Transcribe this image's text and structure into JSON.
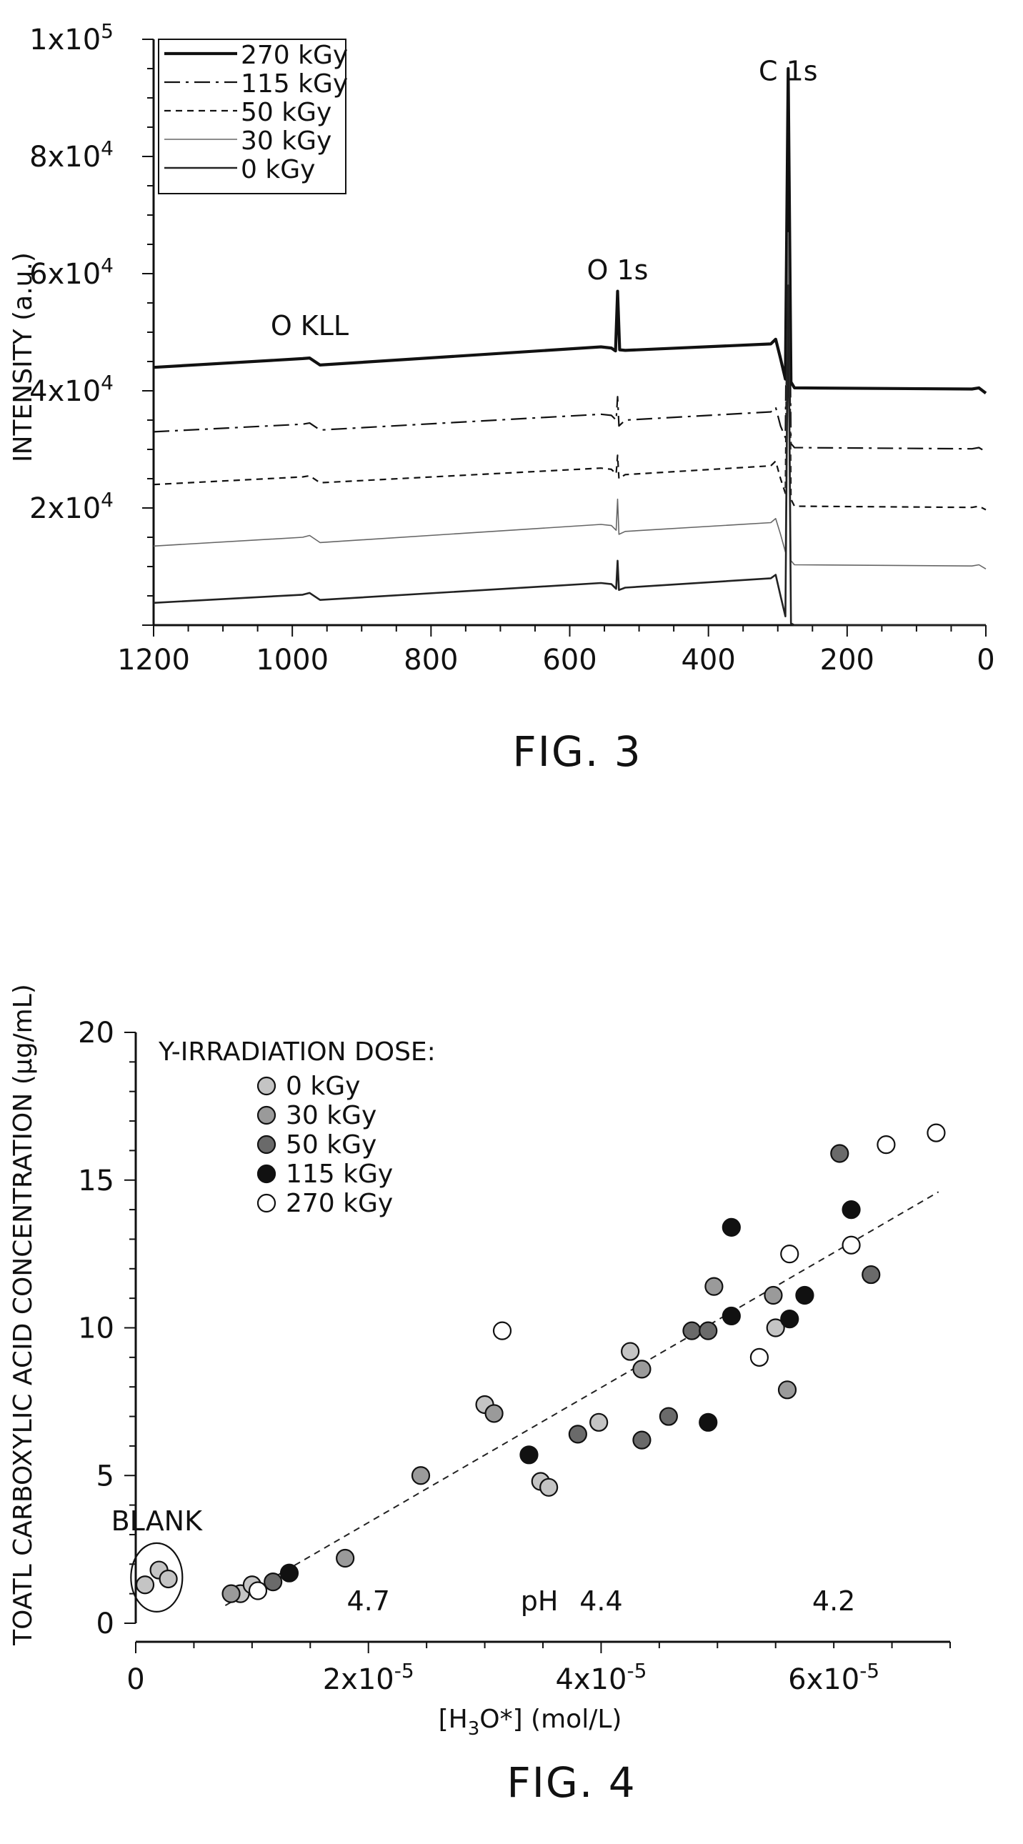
{
  "chart_data": [
    {
      "type": "line",
      "figure_label": "FIG. 3",
      "title": "",
      "ylabel": "INTENSITY (a.u.)",
      "xlabel": "",
      "xlim": [
        1200,
        0
      ],
      "ylim": [
        0,
        100000
      ],
      "x_ticks": [
        1200,
        1000,
        800,
        600,
        400,
        200,
        0
      ],
      "x_tick_labels": [
        "1200",
        "1000",
        "800",
        "600",
        "400",
        "200",
        "0"
      ],
      "y_ticks": [
        {
          "value": 20000,
          "mantissa": "2x10",
          "exp": "4"
        },
        {
          "value": 40000,
          "mantissa": "4x10",
          "exp": "4"
        },
        {
          "value": 60000,
          "mantissa": "6x10",
          "exp": "4"
        },
        {
          "value": 80000,
          "mantissa": "8x10",
          "exp": "4"
        },
        {
          "value": 100000,
          "mantissa": "1x10",
          "exp": "5"
        }
      ],
      "legend_position": "top-left",
      "annotations": [
        {
          "text": "O KLL",
          "x": 975,
          "y": 49500
        },
        {
          "text": "O 1s",
          "x": 531,
          "y": 59000
        },
        {
          "text": "C 1s",
          "x": 285,
          "y": 93000
        }
      ],
      "series": [
        {
          "name": "270 kGy",
          "style": "thick",
          "points": [
            [
              1200,
              44000
            ],
            [
              985,
              45500
            ],
            [
              975,
              45600
            ],
            [
              960,
              44400
            ],
            [
              555,
              47500
            ],
            [
              540,
              47300
            ],
            [
              534,
              46800
            ],
            [
              531,
              57000
            ],
            [
              528,
              47000
            ],
            [
              520,
              46900
            ],
            [
              310,
              48000
            ],
            [
              303,
              48800
            ],
            [
              296,
              45500
            ],
            [
              289,
              42000
            ],
            [
              285,
              95000
            ],
            [
              281,
              41500
            ],
            [
              276,
              40500
            ],
            [
              20,
              40300
            ],
            [
              10,
              40500
            ],
            [
              0,
              39600
            ]
          ]
        },
        {
          "name": "115 kGy",
          "style": "dashdot",
          "points": [
            [
              1200,
              33000
            ],
            [
              985,
              34300
            ],
            [
              975,
              34500
            ],
            [
              960,
              33300
            ],
            [
              555,
              36000
            ],
            [
              540,
              35800
            ],
            [
              533,
              35000
            ],
            [
              531,
              39000
            ],
            [
              529,
              34000
            ],
            [
              520,
              35000
            ],
            [
              310,
              36400
            ],
            [
              303,
              37200
            ],
            [
              296,
              34000
            ],
            [
              289,
              32000
            ],
            [
              285,
              86000
            ],
            [
              281,
              31000
            ],
            [
              276,
              30300
            ],
            [
              20,
              30100
            ],
            [
              10,
              30300
            ],
            [
              0,
              29600
            ]
          ]
        },
        {
          "name": "50 kGy",
          "style": "dashed",
          "points": [
            [
              1200,
              24000
            ],
            [
              985,
              25300
            ],
            [
              975,
              25500
            ],
            [
              960,
              24300
            ],
            [
              555,
              26800
            ],
            [
              540,
              26600
            ],
            [
              533,
              25800
            ],
            [
              531,
              29000
            ],
            [
              529,
              25000
            ],
            [
              520,
              25700
            ],
            [
              310,
              27200
            ],
            [
              303,
              28000
            ],
            [
              296,
              25000
            ],
            [
              289,
              22500
            ],
            [
              285,
              77000
            ],
            [
              281,
              21500
            ],
            [
              276,
              20300
            ],
            [
              20,
              20100
            ],
            [
              10,
              20300
            ],
            [
              0,
              19700
            ]
          ]
        },
        {
          "name": "30 kGy",
          "style": "thin",
          "points": [
            [
              1200,
              13500
            ],
            [
              985,
              15000
            ],
            [
              975,
              15300
            ],
            [
              960,
              14100
            ],
            [
              555,
              17200
            ],
            [
              540,
              17000
            ],
            [
              533,
              16200
            ],
            [
              531,
              21500
            ],
            [
              529,
              15500
            ],
            [
              520,
              16000
            ],
            [
              310,
              17500
            ],
            [
              303,
              18200
            ],
            [
              296,
              15500
            ],
            [
              289,
              12500
            ],
            [
              285,
              67000
            ],
            [
              281,
              11000
            ],
            [
              276,
              10300
            ],
            [
              20,
              10100
            ],
            [
              10,
              10300
            ],
            [
              0,
              9600
            ]
          ]
        },
        {
          "name": "0 kGy",
          "style": "medium",
          "points": [
            [
              1200,
              3800
            ],
            [
              985,
              5200
            ],
            [
              975,
              5500
            ],
            [
              960,
              4300
            ],
            [
              555,
              7200
            ],
            [
              540,
              7000
            ],
            [
              533,
              6200
            ],
            [
              531,
              11000
            ],
            [
              529,
              6000
            ],
            [
              520,
              6400
            ],
            [
              310,
              8000
            ],
            [
              303,
              8600
            ],
            [
              296,
              5000
            ],
            [
              289,
              1500
            ],
            [
              285,
              58000
            ],
            [
              281,
              300
            ],
            [
              276,
              0
            ],
            [
              0,
              0
            ]
          ]
        }
      ]
    },
    {
      "type": "scatter",
      "figure_label": "FIG. 4",
      "title": "",
      "xlabel": "[H3O*] (mol/L)",
      "ylabel": "TOATL CARBOXYLIC ACID CONCENTRATION (µg/mL)",
      "xlim": [
        0,
        7e-05
      ],
      "ylim": [
        0,
        20
      ],
      "x_ticks": [
        {
          "value": 0,
          "mantissa": "0",
          "exp": ""
        },
        {
          "value": 2e-05,
          "mantissa": "2x10",
          "exp": "-5"
        },
        {
          "value": 4e-05,
          "mantissa": "4x10",
          "exp": "-5"
        },
        {
          "value": 6e-05,
          "mantissa": "6x10",
          "exp": "-5"
        }
      ],
      "y_ticks": [
        0,
        5,
        10,
        15,
        20
      ],
      "y_tick_labels": [
        "0",
        "5",
        "10",
        "15",
        "20"
      ],
      "legend_title": "Y-IRRADIATION DOSE:",
      "legend_position": "top-left",
      "ph_label": "pH",
      "ph_ticks": [
        {
          "label": "4.7",
          "x": 2e-05
        },
        {
          "label": "4.4",
          "x": 4e-05
        },
        {
          "label": "4.2",
          "x": 6e-05
        }
      ],
      "blank_label": "BLANK",
      "trendline": {
        "style": "dashed",
        "from": [
          7.7e-06,
          0.6
        ],
        "to": [
          6.9e-05,
          14.6
        ]
      },
      "series": [
        {
          "name": "0 kGy",
          "color": "#c4c4c4",
          "points": [
            [
              8e-07,
              1.3
            ],
            [
              2e-06,
              1.8
            ],
            [
              2.8e-06,
              1.5
            ],
            [
              9e-06,
              1.0
            ],
            [
              1e-05,
              1.3
            ],
            [
              3e-05,
              7.4
            ],
            [
              3.48e-05,
              4.8
            ],
            [
              3.55e-05,
              4.6
            ],
            [
              3.98e-05,
              6.8
            ],
            [
              4.25e-05,
              9.2
            ],
            [
              5.5e-05,
              10.0
            ]
          ]
        },
        {
          "name": "30 kGy",
          "color": "#9a9a9a",
          "points": [
            [
              8.2e-06,
              1.0
            ],
            [
              1.8e-05,
              2.2
            ],
            [
              2.45e-05,
              5.0
            ],
            [
              3.08e-05,
              7.1
            ],
            [
              4.35e-05,
              8.6
            ],
            [
              4.97e-05,
              11.4
            ],
            [
              5.48e-05,
              11.1
            ],
            [
              5.6e-05,
              7.9
            ]
          ]
        },
        {
          "name": "50 kGy",
          "color": "#6a6a6a",
          "points": [
            [
              1.18e-05,
              1.4
            ],
            [
              3.8e-05,
              6.4
            ],
            [
              4.35e-05,
              6.2
            ],
            [
              4.58e-05,
              7.0
            ],
            [
              4.78e-05,
              9.9
            ],
            [
              4.92e-05,
              9.9
            ],
            [
              6.05e-05,
              15.9
            ],
            [
              6.32e-05,
              11.8
            ]
          ]
        },
        {
          "name": "115 kGy",
          "color": "#111111",
          "points": [
            [
              1.32e-05,
              1.7
            ],
            [
              3.38e-05,
              5.7
            ],
            [
              4.92e-05,
              6.8
            ],
            [
              5.12e-05,
              10.4
            ],
            [
              5.12e-05,
              13.4
            ],
            [
              5.62e-05,
              10.3
            ],
            [
              5.75e-05,
              11.1
            ],
            [
              6.15e-05,
              14.0
            ]
          ]
        },
        {
          "name": "270 kGy",
          "color": "#ffffff",
          "points": [
            [
              1.05e-05,
              1.1
            ],
            [
              3.15e-05,
              9.9
            ],
            [
              5.36e-05,
              9.0
            ],
            [
              5.62e-05,
              12.5
            ],
            [
              6.15e-05,
              12.8
            ],
            [
              6.45e-05,
              16.2
            ],
            [
              6.88e-05,
              16.6
            ]
          ]
        }
      ]
    }
  ]
}
